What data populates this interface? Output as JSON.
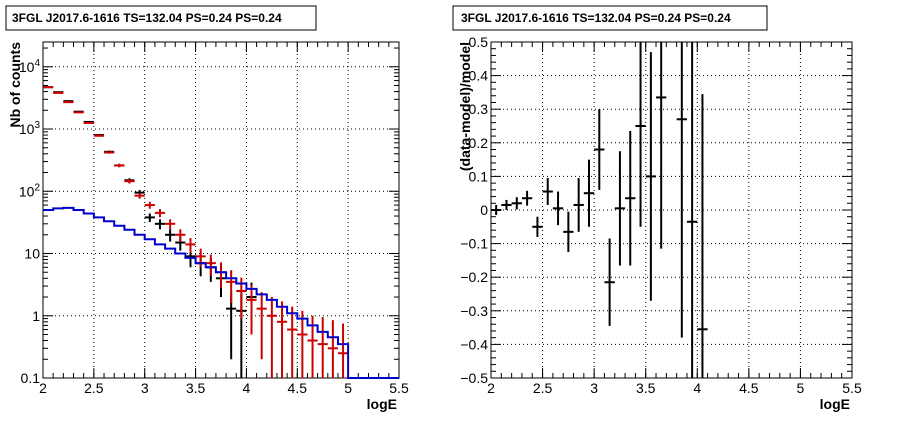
{
  "chart_data": [
    {
      "type": "step+errorbars",
      "title": "3FGL J2017.6-1616 TS=132.04 PS=0.24 PS=0.24",
      "xlabel": "logE",
      "ylabel": "Nb of counts",
      "xlim": [
        2,
        5.5
      ],
      "ylim": [
        0.1,
        25000
      ],
      "yscale": "log",
      "grid": true,
      "x_ticks": [
        "2",
        "2.5",
        "3",
        "3.5",
        "4",
        "4.5",
        "5",
        "5.5"
      ],
      "y_ticks": [
        "0.1",
        "1",
        "10",
        "10^2",
        "10^3",
        "10^4"
      ],
      "bin_width": 0.1,
      "series": [
        {
          "role": "data",
          "color": "#000000",
          "x": [
            2.05,
            2.15,
            2.25,
            2.35,
            2.45,
            2.55,
            2.65,
            2.75,
            2.85,
            2.95,
            3.05,
            3.15,
            3.25,
            3.35,
            3.45,
            3.55,
            3.65,
            3.75,
            3.85,
            3.95,
            4.05
          ],
          "y": [
            4700,
            3900,
            2800,
            1900,
            1300,
            800,
            430,
            260,
            150,
            95,
            38,
            30,
            20,
            15,
            9,
            7,
            6,
            4,
            1.3,
            1.2,
            2
          ],
          "err": [
            70,
            62,
            53,
            44,
            36,
            28,
            21,
            16,
            12,
            10,
            6,
            5.5,
            4.5,
            3.9,
            3,
            2.7,
            2.5,
            2,
            1.1,
            1.1,
            1.4
          ]
        },
        {
          "role": "model",
          "color": "#cc0000",
          "x": [
            2.05,
            2.15,
            2.25,
            2.35,
            2.45,
            2.55,
            2.65,
            2.75,
            2.85,
            2.95,
            3.05,
            3.15,
            3.25,
            3.35,
            3.45,
            3.55,
            3.65,
            3.75,
            3.85,
            3.95,
            4.05,
            4.15,
            4.25,
            4.35,
            4.45,
            4.55,
            4.65,
            4.75,
            4.85,
            4.95
          ],
          "y": [
            4700,
            3800,
            2700,
            1850,
            1250,
            780,
            420,
            260,
            145,
            85,
            60,
            45,
            30,
            20,
            14,
            9,
            7,
            5,
            3.5,
            2.5,
            1.8,
            1.3,
            1,
            0.8,
            0.6,
            0.5,
            0.4,
            0.35,
            0.3,
            0.25
          ],
          "err": [
            68,
            61,
            52,
            43,
            35,
            28,
            20,
            16,
            12,
            9.2,
            7.7,
            6.7,
            5.5,
            4.5,
            3.7,
            3,
            2.6,
            2.2,
            1.9,
            1.6,
            1.3,
            1.1,
            1,
            0.9,
            0.8,
            0.7,
            0.6,
            0.6,
            0.55,
            0.5
          ]
        },
        {
          "role": "source",
          "color": "#0000cc",
          "x": [
            2.0,
            2.1,
            2.2,
            2.3,
            2.4,
            2.5,
            2.6,
            2.7,
            2.8,
            2.9,
            3.0,
            3.1,
            3.2,
            3.3,
            3.4,
            3.5,
            3.6,
            3.7,
            3.8,
            3.9,
            4.0,
            4.1,
            4.2,
            4.3,
            4.4,
            4.5,
            4.6,
            4.7,
            4.8,
            4.9,
            5.0,
            5.1,
            5.2,
            5.3,
            5.4
          ],
          "y": [
            50,
            53,
            54,
            50,
            44,
            38,
            33,
            28,
            24,
            20,
            17,
            14,
            12,
            10,
            8.5,
            7,
            6,
            5,
            4,
            3.3,
            2.7,
            2.2,
            1.8,
            1.4,
            1.1,
            0.9,
            0.7,
            0.55,
            0.45,
            0.35,
            0.1,
            0.1,
            0.1,
            0.1,
            0.1
          ]
        }
      ]
    },
    {
      "type": "errorbars",
      "title": "3FGL J2017.6-1616 TS=132.04 PS=0.24 PS=0.24",
      "xlabel": "logE",
      "ylabel": "(data-model)/model",
      "xlim": [
        2,
        5.5
      ],
      "ylim": [
        -0.5,
        0.5
      ],
      "grid": true,
      "x_ticks": [
        "2",
        "2.5",
        "3",
        "3.5",
        "4",
        "4.5",
        "5",
        "5.5"
      ],
      "y_ticks": [
        "−0.5",
        "−0.4",
        "−0.3",
        "−0.2",
        "−0.1",
        "0",
        "0.1",
        "0.2",
        "0.3",
        "0.4",
        "0.5"
      ],
      "bin_width": 0.1,
      "series": [
        {
          "color": "#000000",
          "x": [
            2.05,
            2.15,
            2.25,
            2.35,
            2.45,
            2.55,
            2.65,
            2.75,
            2.85,
            2.95,
            3.05,
            3.15,
            3.25,
            3.35,
            3.45,
            3.55,
            3.65,
            3.75,
            3.85,
            3.95,
            4.05
          ],
          "y": [
            0.0,
            0.015,
            0.02,
            0.035,
            -0.05,
            0.055,
            0.005,
            -0.065,
            0.015,
            0.05,
            0.18,
            -0.215,
            0.005,
            0.035,
            0.25,
            0.1,
            0.335,
            null,
            0.27,
            -0.035,
            -0.355
          ],
          "err": [
            0.015,
            0.015,
            0.018,
            0.022,
            0.03,
            0.04,
            0.05,
            0.06,
            0.08,
            0.1,
            0.12,
            0.13,
            0.17,
            0.2,
            0.3,
            0.37,
            0.45,
            null,
            0.65,
            0.7,
            0.7
          ]
        }
      ]
    }
  ]
}
